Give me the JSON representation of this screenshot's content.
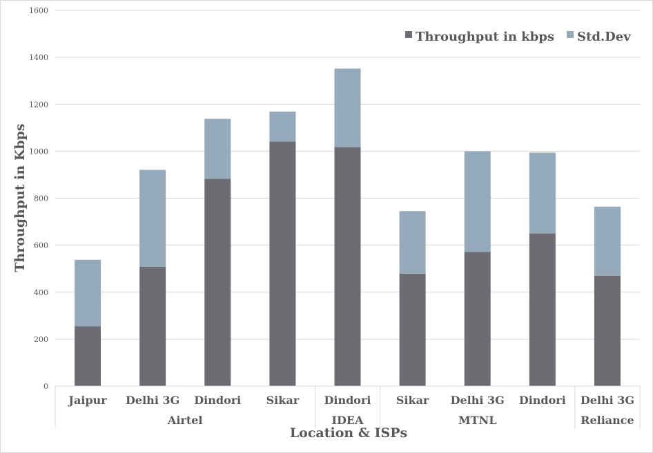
{
  "chart_data": {
    "type": "bar",
    "stacked": true,
    "title": "",
    "xlabel": "Location & ISPs",
    "ylabel": "Throughput in Kbps",
    "ylim": [
      0,
      1600
    ],
    "yticks": [
      "0",
      "200",
      "400",
      "600",
      "800",
      "1000",
      "1200",
      "1400",
      "1600"
    ],
    "grid": true,
    "legend_position": "top-right",
    "categories": [
      "Jaipur",
      "Delhi 3G",
      "Dindori",
      "Sikar",
      "Dindori",
      "Sikar",
      "Delhi 3G",
      "Dindori",
      "Delhi 3G"
    ],
    "groups": [
      {
        "label": "Airtel",
        "count": 4
      },
      {
        "label": "IDEA",
        "count": 1
      },
      {
        "label": "MTNL",
        "count": 3
      },
      {
        "label": "Reliance",
        "count": 1
      }
    ],
    "series": [
      {
        "name": "Throughput in kbps",
        "color": "#6d6c72",
        "values": [
          255,
          508,
          883,
          1041,
          1018,
          479,
          571,
          650,
          470
        ]
      },
      {
        "name": "Std.Dev",
        "color": "#94a9b9",
        "values": [
          283,
          413,
          255,
          128,
          334,
          266,
          429,
          344,
          294
        ]
      }
    ]
  }
}
